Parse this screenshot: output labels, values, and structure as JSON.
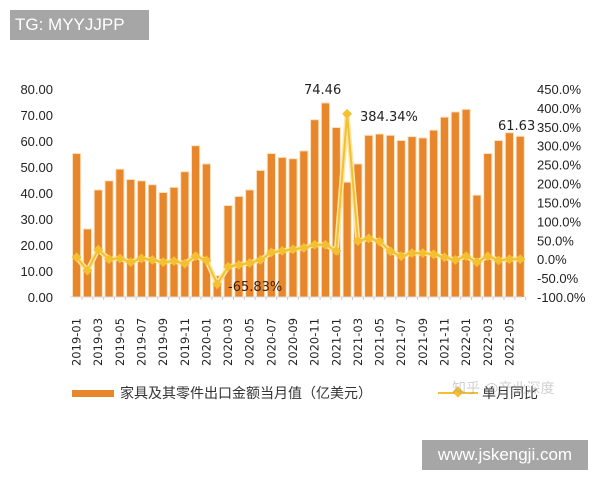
{
  "overlays": {
    "tag_label": "TG: MYYJJPP",
    "url_label": "www.jskengji.com",
    "watermark": "知乎 @产业深度"
  },
  "legend": {
    "bar_label": "家具及其零件出口金额当月值（亿美元）",
    "line_label": "单月同比"
  },
  "annotations": {
    "max_bar": "74.46",
    "max_line": "384.34%",
    "min_line": "-65.83%",
    "last_bar": "61.63"
  },
  "colors": {
    "bar": "#e8862c",
    "line": "#f5c030",
    "text": "#222222"
  },
  "chart_data": {
    "type": "bar+line",
    "title": "",
    "xlabel": "",
    "ylabel": "家具及其零件出口金额当月值（亿美元）",
    "y2label": "单月同比",
    "ylim": [
      0,
      80
    ],
    "y2lim": [
      -100,
      450
    ],
    "yticks": [
      "0.00",
      "10.00",
      "20.00",
      "30.00",
      "40.00",
      "50.00",
      "60.00",
      "70.00",
      "80.00"
    ],
    "y2ticks": [
      "-100.0%",
      "-50.0%",
      "0.0%",
      "50.0%",
      "100.0%",
      "150.0%",
      "200.0%",
      "250.0%",
      "300.0%",
      "350.0%",
      "400.0%",
      "450.0%"
    ],
    "grid": false,
    "legend_position": "bottom",
    "categories": [
      "2019-01",
      "2019-02",
      "2019-03",
      "2019-04",
      "2019-05",
      "2019-06",
      "2019-07",
      "2019-08",
      "2019-09",
      "2019-10",
      "2019-11",
      "2019-12",
      "2020-01",
      "2020-02",
      "2020-03",
      "2020-04",
      "2020-05",
      "2020-06",
      "2020-07",
      "2020-08",
      "2020-09",
      "2020-10",
      "2020-11",
      "2020-12",
      "2021-01",
      "2021-02",
      "2021-03",
      "2021-04",
      "2021-05",
      "2021-06",
      "2021-07",
      "2021-08",
      "2021-09",
      "2021-10",
      "2021-11",
      "2021-12",
      "2022-01",
      "2022-02",
      "2022-03",
      "2022-04",
      "2022-05",
      "2022-06"
    ],
    "xtick_labels": [
      "2019-01",
      "2019-03",
      "2019-05",
      "2019-07",
      "2019-09",
      "2019-11",
      "2020-01",
      "2020-03",
      "2020-05",
      "2020-07",
      "2020-09",
      "2020-11",
      "2021-01",
      "2021-03",
      "2021-05",
      "2021-07",
      "2021-09",
      "2021-11",
      "2022-01",
      "2022-03",
      "2022-05"
    ],
    "series": [
      {
        "name": "家具及其零件出口金额当月值（亿美元）",
        "type": "bar",
        "axis": "left",
        "values": [
          55,
          26,
          41,
          44.5,
          49,
          45,
          44.5,
          43,
          40,
          42,
          48,
          58,
          51,
          8,
          35,
          38.5,
          41,
          48.5,
          55,
          53.5,
          53,
          56,
          68,
          74.46,
          65,
          44,
          51,
          62,
          62.5,
          62,
          60,
          61.5,
          61,
          64,
          69,
          71,
          72,
          39,
          55,
          60,
          63,
          61.63
        ]
      },
      {
        "name": "单月同比",
        "type": "line",
        "axis": "right",
        "values": [
          5,
          -30,
          25,
          0,
          2,
          -8,
          2,
          -2,
          -8,
          -5,
          -12,
          8,
          -3,
          -65.83,
          -20,
          -15,
          -10,
          -2,
          18,
          22,
          26,
          30,
          38,
          38,
          22,
          384.34,
          48,
          55,
          47,
          21,
          8,
          16,
          16,
          13,
          5,
          -2,
          8,
          -8,
          8,
          -3,
          0,
          0
        ]
      }
    ]
  }
}
